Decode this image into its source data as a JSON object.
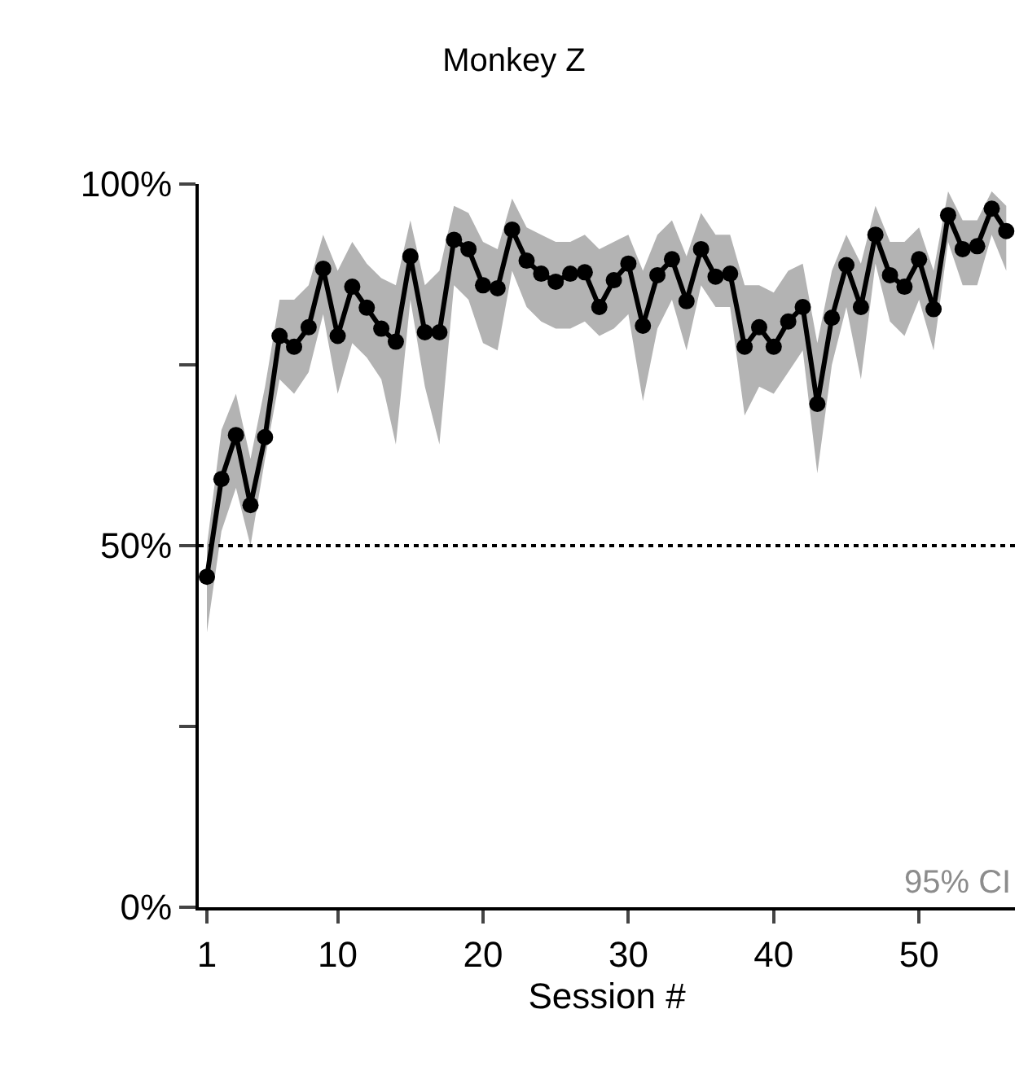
{
  "chart_data": {
    "type": "line",
    "title": "Monkey Z",
    "xlabel": "Session #",
    "x": [
      1,
      2,
      3,
      4,
      5,
      6,
      7,
      8,
      9,
      10,
      11,
      12,
      13,
      14,
      15,
      16,
      17,
      18,
      19,
      20,
      21,
      22,
      23,
      24,
      25,
      26,
      27,
      28,
      29,
      30,
      31,
      32,
      33,
      34,
      35,
      36,
      37,
      38,
      39,
      40,
      41,
      42,
      43,
      44,
      45,
      46,
      47,
      48,
      49,
      50,
      51,
      52,
      53,
      54,
      55,
      56
    ],
    "series": [
      {
        "color": "#000000",
        "values": [
          45.7,
          59.2,
          65.3,
          55.6,
          65,
          79,
          77.5,
          80.2,
          88.3,
          79,
          85.8,
          82.9,
          80,
          78.2,
          90,
          79.5,
          79.5,
          92.3,
          91,
          86,
          85.6,
          93.7,
          89.4,
          87.6,
          86.5,
          87.6,
          87.8,
          83,
          86.7,
          89,
          80.4,
          87.4,
          89.6,
          83.8,
          91,
          87.2,
          87.6,
          77.5,
          80.2,
          77.5,
          81,
          83,
          69.6,
          81.5,
          88.8,
          83,
          93,
          87.4,
          85.8,
          89.6,
          82.7,
          95.7,
          91,
          91.4,
          96.6,
          93.5
        ],
        "lower": [
          38,
          52,
          58,
          50,
          62,
          73,
          71,
          74,
          82,
          71,
          78,
          76,
          73,
          64,
          84,
          72,
          64,
          86,
          84,
          78,
          77,
          88,
          83,
          81,
          80,
          80,
          81,
          79,
          80,
          82,
          70,
          80,
          84,
          77,
          86,
          83,
          83,
          68,
          72,
          71,
          74,
          77,
          60,
          75,
          83,
          73,
          89,
          81,
          79,
          84,
          77,
          92,
          86,
          86,
          93,
          88
        ],
        "upper": [
          50,
          66,
          71,
          62,
          72,
          84,
          84,
          86,
          93,
          88,
          92,
          89,
          87,
          86,
          95,
          86,
          88,
          97,
          96,
          92,
          91,
          98,
          94,
          93,
          92,
          92,
          93,
          91,
          92,
          93,
          88,
          93,
          95,
          90,
          96,
          93,
          93,
          86,
          86,
          85,
          88,
          89,
          78,
          88,
          93,
          89,
          97,
          92,
          92,
          94,
          88,
          99,
          95,
          95,
          99,
          97
        ]
      }
    ],
    "xlim": [
      0.44,
      56.6
    ],
    "xticks": [
      1,
      10,
      20,
      30,
      40,
      50
    ],
    "ylim": [
      0,
      100
    ],
    "yticks": [
      {
        "value": 0,
        "label": "0%"
      },
      {
        "value": 25,
        "label": null
      },
      {
        "value": 50,
        "label": "50%"
      },
      {
        "value": 75,
        "label": null
      },
      {
        "value": 100,
        "label": "100%"
      }
    ],
    "ref_lines": [
      {
        "axis": "y",
        "value": 50,
        "line_style": "dotted",
        "color": "#000000"
      }
    ],
    "annotations": [
      "95% CI"
    ],
    "marker": "circle",
    "line_style": "solid"
  }
}
